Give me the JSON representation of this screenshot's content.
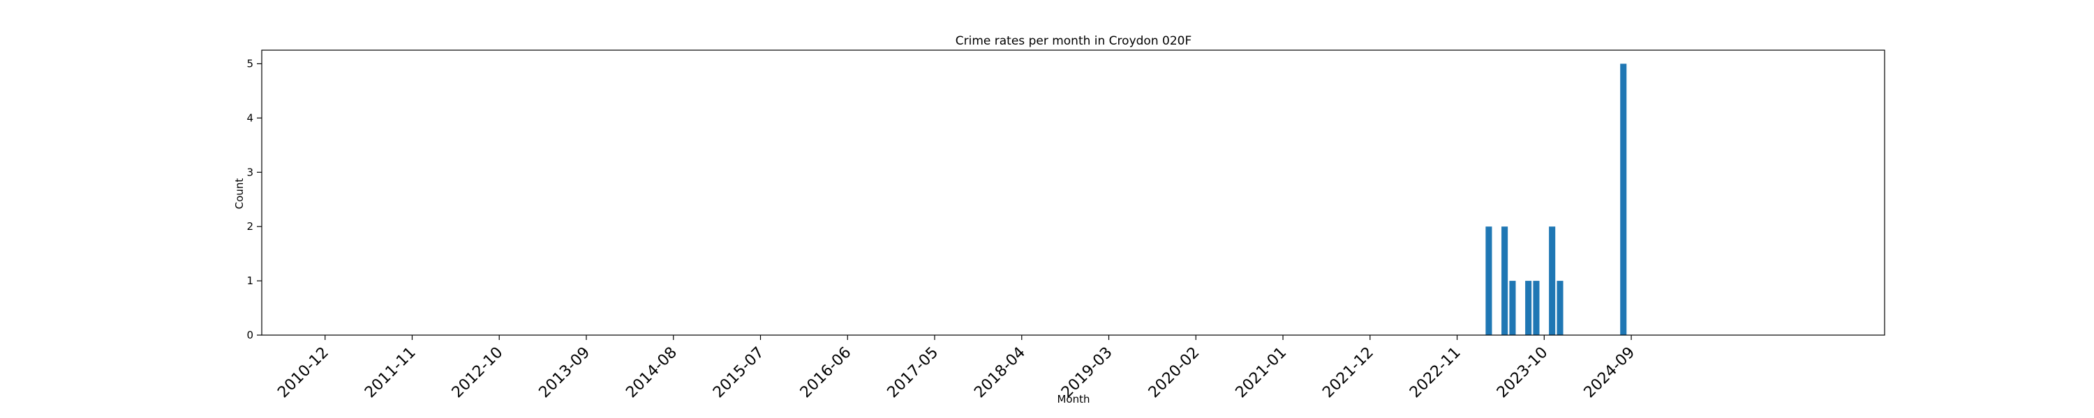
{
  "chart_data": {
    "type": "bar",
    "title": "Crime rates per month in Croydon 020F",
    "xlabel": "Month",
    "ylabel": "Count",
    "ylim": [
      0,
      5.25
    ],
    "yticks": [
      0,
      1,
      2,
      3,
      4,
      5
    ],
    "xlim": [
      "2010-04",
      "2027-05"
    ],
    "xticks": [
      "2010-12",
      "2011-11",
      "2012-10",
      "2013-09",
      "2014-08",
      "2015-07",
      "2016-06",
      "2017-05",
      "2018-04",
      "2019-03",
      "2020-02",
      "2021-01",
      "2021-12",
      "2022-11",
      "2023-10",
      "2024-09"
    ],
    "grid": false,
    "legend": "none",
    "bar_color": "#1f77b4",
    "x": [
      "2023-03",
      "2023-05",
      "2023-06",
      "2023-08",
      "2023-09",
      "2023-11",
      "2023-12",
      "2024-08"
    ],
    "values": [
      2,
      2,
      1,
      1,
      1,
      2,
      1,
      5
    ]
  }
}
